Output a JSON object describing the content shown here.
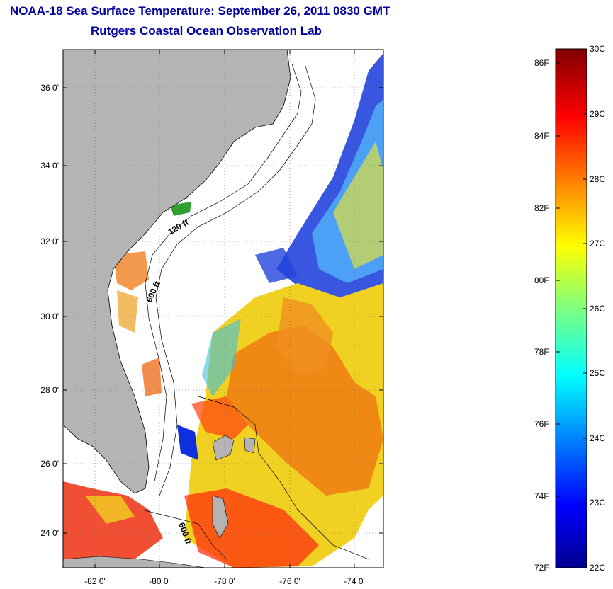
{
  "title": {
    "line1": "NOAA-18 Sea Surface Temperature:  September 26, 2011 0830 GMT",
    "line2": "Rutgers Coastal Ocean Observation Lab"
  },
  "map": {
    "lat_ticks": [
      "36 0'",
      "34 0'",
      "32 0'",
      "30 0'",
      "28 0'",
      "26 0'",
      "24 0'"
    ],
    "lon_ticks": [
      "-82 0'",
      "-80 0'",
      "-78 0'",
      "-76 0'",
      "-74 0'"
    ],
    "contour_labels": [
      "120 ft",
      "600 ft",
      "600 ft"
    ],
    "land_color": "#b4b4b4",
    "no_data_color": "#ffffff"
  },
  "colorbar": {
    "fahrenheit_labels": [
      "86F",
      "84F",
      "82F",
      "80F",
      "78F",
      "76F",
      "74F",
      "72F"
    ],
    "celsius_labels": [
      "30C",
      "29C",
      "28C",
      "27C",
      "26C",
      "25C",
      "24C",
      "23C",
      "22C"
    ],
    "colormap": "jet",
    "range_c": [
      22,
      30
    ]
  }
}
